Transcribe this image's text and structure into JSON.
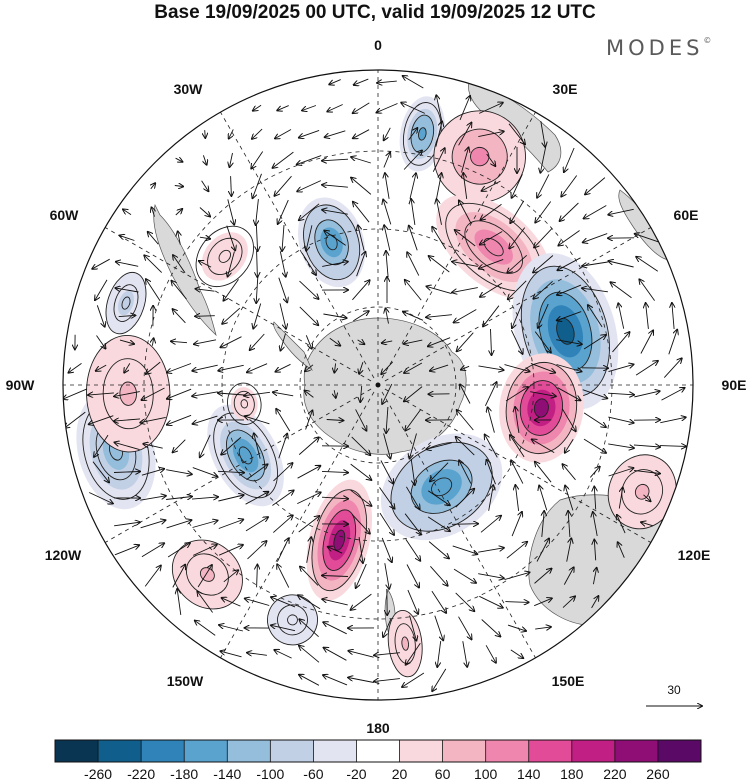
{
  "title": "Base 19/09/2025 00 UTC, valid 19/09/2025 12 UTC",
  "brand": {
    "name": "MODES",
    "mark": "©"
  },
  "meridian_labels": {
    "m0": "0",
    "m30e": "30E",
    "m60e": "60E",
    "m90e": "90E",
    "m120e": "120E",
    "m150e": "150E",
    "m180": "180",
    "m150w": "150W",
    "m120w": "120W",
    "m90w": "90W",
    "m60w": "60W",
    "m30w": "30W"
  },
  "vector_reference": {
    "value": "30",
    "icon": "arrow-right-icon"
  },
  "colorbar": {
    "ticks": [
      "-260",
      "-220",
      "-180",
      "-140",
      "-100",
      "-60",
      "-20",
      "20",
      "60",
      "100",
      "140",
      "180",
      "220",
      "260"
    ],
    "colors": [
      "#0a3552",
      "#0f5e8c",
      "#2f83b8",
      "#5aa3cf",
      "#94bedb",
      "#c2d0e6",
      "#e3e4f1",
      "#ffffff",
      "#f9d9de",
      "#f4b5c3",
      "#ee86ad",
      "#e24b97",
      "#c11f84",
      "#8e0e75",
      "#5a0a66"
    ]
  },
  "anomalies": [
    {
      "name": "blue-anomaly-0",
      "lon": 10,
      "dist": 255,
      "strength": -150,
      "rx": 22,
      "ry": 38
    },
    {
      "name": "blue-anomaly-30w",
      "lon": -18,
      "dist": 150,
      "strength": -180,
      "rx": 32,
      "ry": 46
    },
    {
      "name": "pink-anomaly-30e",
      "lon": 24,
      "dist": 250,
      "strength": 110,
      "rx": 55,
      "ry": 55
    },
    {
      "name": "pink-anomaly-45e",
      "lon": 40,
      "dist": 180,
      "strength": 130,
      "rx": 68,
      "ry": 38
    },
    {
      "name": "blue-anomaly-75e",
      "lon": 74,
      "dist": 195,
      "strength": -250,
      "rx": 80,
      "ry": 50
    },
    {
      "name": "purple-anomaly-100e",
      "lon": 98,
      "dist": 165,
      "strength": 240,
      "rx": 55,
      "ry": 42
    },
    {
      "name": "blue-anomaly-145e",
      "lon": 148,
      "dist": 120,
      "strength": -180,
      "rx": 65,
      "ry": 48
    },
    {
      "name": "purple-anomaly-180",
      "lon": -166,
      "dist": 160,
      "strength": 220,
      "rx": 30,
      "ry": 62
    },
    {
      "name": "blue-anomaly-120w",
      "lon": -118,
      "dist": 150,
      "strength": -170,
      "rx": 55,
      "ry": 32
    },
    {
      "name": "blue-anomaly-110w",
      "lon": -104,
      "dist": 270,
      "strength": -120,
      "rx": 60,
      "ry": 38
    },
    {
      "name": "pink-anomaly-90w",
      "lon": -92,
      "dist": 250,
      "strength": 60,
      "rx": 70,
      "ry": 50
    },
    {
      "name": "pink-anomaly-135w",
      "lon": -138,
      "dist": 255,
      "strength": 70,
      "rx": 45,
      "ry": 38
    },
    {
      "name": "blue-anomaly-150w",
      "lon": -160,
      "dist": 250,
      "strength": -60,
      "rx": 30,
      "ry": 30
    },
    {
      "name": "pink-anomaly-170e",
      "lon": 174,
      "dist": 260,
      "strength": 60,
      "rx": 20,
      "ry": 40
    },
    {
      "name": "blue-anomaly-70w",
      "lon": -72,
      "dist": 265,
      "strength": -80,
      "rx": 38,
      "ry": 22
    },
    {
      "name": "pink-anomaly-50w",
      "lon": -50,
      "dist": 200,
      "strength": 50,
      "rx": 40,
      "ry": 30
    },
    {
      "name": "pink-anomaly-110e",
      "lon": 112,
      "dist": 285,
      "strength": 60,
      "rx": 45,
      "ry": 40
    },
    {
      "name": "pink-anomaly-100w",
      "lon": -98,
      "dist": 135,
      "strength": 50,
      "rx": 25,
      "ry": 20
    }
  ]
}
